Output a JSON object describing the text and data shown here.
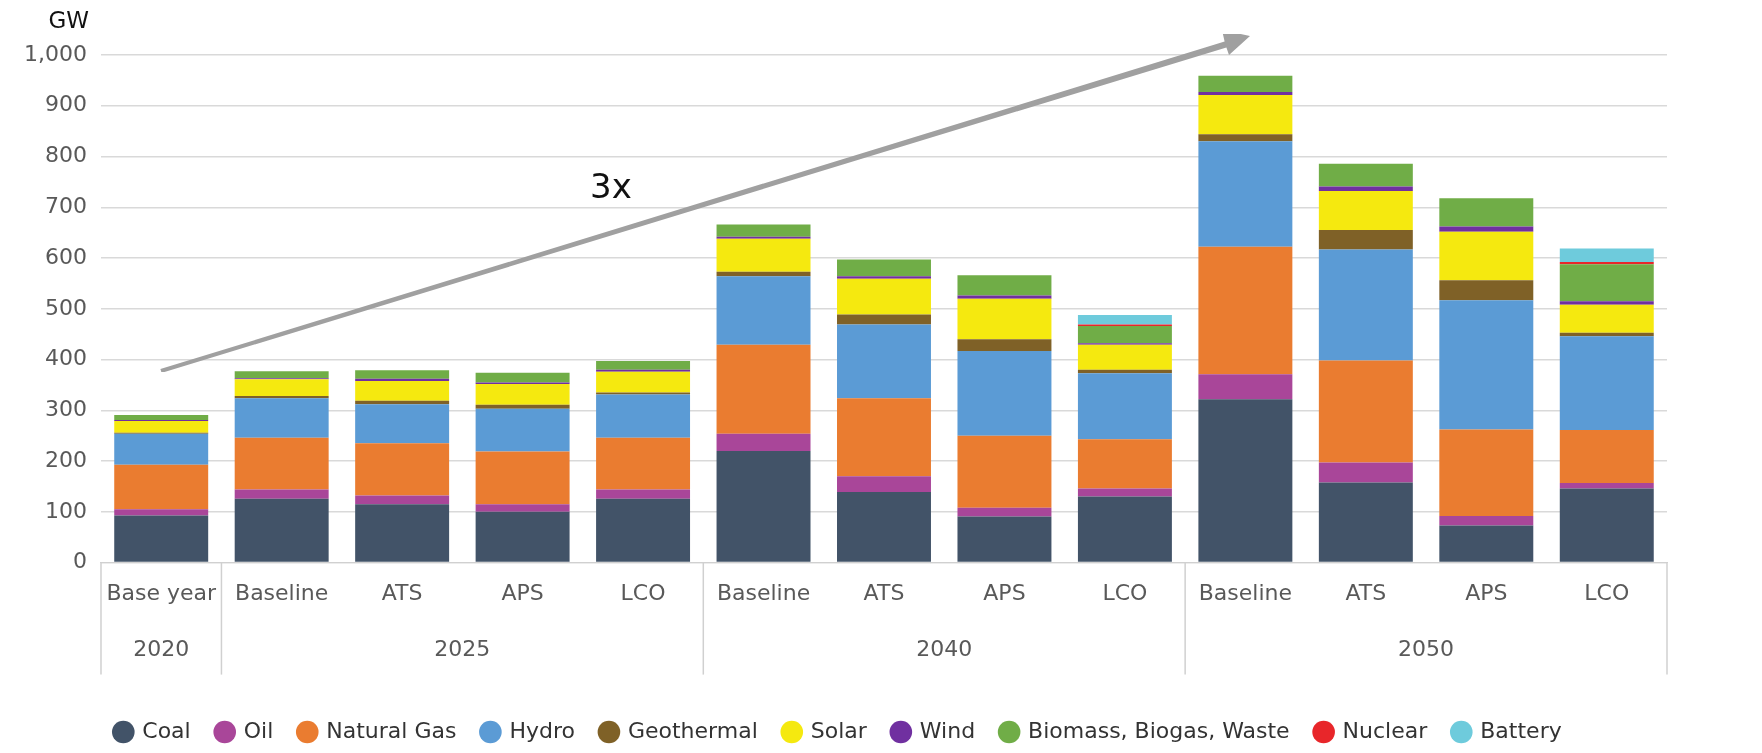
{
  "chart_data": {
    "type": "bar",
    "stacked": true,
    "ylabel": "GW",
    "categories": [
      "Base year",
      "Baseline",
      "ATS",
      "APS",
      "LCO",
      "Baseline",
      "ATS",
      "APS",
      "LCO",
      "Baseline",
      "ATS",
      "APS",
      "LCO"
    ],
    "annotations": [
      "3x",
      "2020",
      "2025",
      "2040",
      "2050"
    ],
    "ylim": [
      0,
      1000
    ],
    "yticks": [
      0,
      100,
      200,
      300,
      400,
      500,
      600,
      700,
      800,
      900,
      {
        "value": 1000,
        "label": "1,000"
      }
    ],
    "grid": "y",
    "legend": "bottom",
    "series": [
      {
        "name": "Coal",
        "color": "#425368",
        "values": [
          93,
          126,
          115,
          100,
          126,
          220,
          139,
          91,
          130,
          322,
          158,
          73,
          146
        ]
      },
      {
        "name": "Oil",
        "color": "#a94699",
        "values": [
          12,
          18,
          17,
          15,
          18,
          34,
          31,
          17,
          16,
          49,
          39,
          19,
          11
        ]
      },
      {
        "name": "Natural Gas",
        "color": "#ea7c30",
        "values": [
          88,
          102,
          103,
          104,
          102,
          175,
          154,
          142,
          97,
          251,
          201,
          170,
          104
        ]
      },
      {
        "name": "Hydro",
        "color": "#5b9bd5",
        "values": [
          61,
          78,
          77,
          84,
          85,
          135,
          145,
          167,
          130,
          208,
          219,
          255,
          185
        ]
      },
      {
        "name": "Geothermal",
        "color": "#7f6127",
        "values": [
          2,
          4,
          7,
          8,
          4,
          9,
          20,
          23,
          7,
          14,
          38,
          39,
          7
        ]
      },
      {
        "name": "Solar",
        "color": "#f5e90f",
        "values": [
          23,
          33,
          39,
          41,
          41,
          65,
          70,
          80,
          49,
          77,
          77,
          96,
          55
        ]
      },
      {
        "name": "Wind",
        "color": "#7030a0",
        "values": [
          2,
          2,
          4,
          3,
          4,
          4,
          5,
          6,
          3,
          6,
          9,
          10,
          7
        ]
      },
      {
        "name": "Biomass, Biogas, Waste",
        "color": "#70ad47",
        "values": [
          10,
          14,
          17,
          19,
          17,
          24,
          33,
          40,
          34,
          32,
          45,
          56,
          73
        ]
      },
      {
        "name": "Nuclear",
        "color": "#e8262a",
        "values": [
          null,
          null,
          null,
          null,
          null,
          null,
          null,
          null,
          3,
          null,
          null,
          null,
          4
        ]
      },
      {
        "name": "Battery",
        "color": "#6ecbdc",
        "values": [
          null,
          null,
          null,
          null,
          null,
          null,
          null,
          null,
          19,
          null,
          null,
          null,
          27
        ]
      }
    ]
  }
}
